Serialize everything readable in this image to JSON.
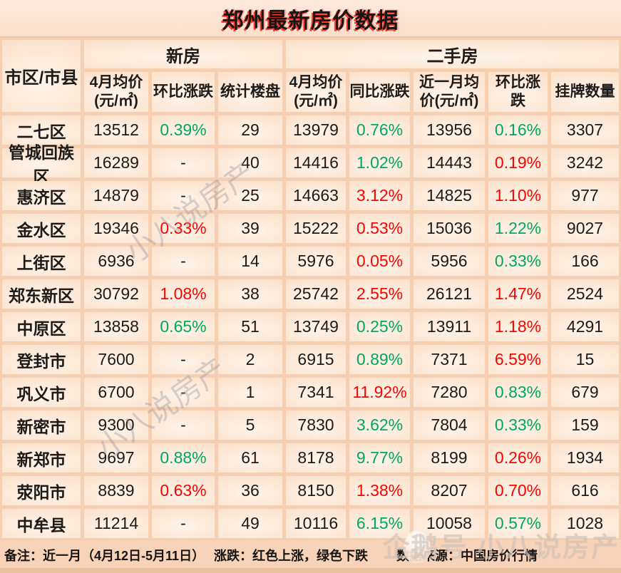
{
  "title": "郑州最新房价数据",
  "chart_data": {
    "type": "table",
    "corner_header": "市区/市县",
    "column_groups": [
      {
        "label": "新房",
        "colspan": 3
      },
      {
        "label": "二手房",
        "colspan": 5
      }
    ],
    "columns": [
      "4月均价\n(元/㎡)",
      "环比涨跌",
      "统计楼盘",
      "4月均价\n(元/㎡)",
      "同比涨跌",
      "近一月均\n价(元/㎡)",
      "环比涨跌",
      "挂牌数量"
    ],
    "rows": [
      {
        "district": "二七区",
        "values": [
          "13512",
          "0.39%",
          "29",
          "13979",
          "0.76%",
          "13956",
          "0.16%",
          "3307"
        ],
        "colors": [
          "black",
          "green",
          "black",
          "black",
          "green",
          "black",
          "green",
          "black"
        ]
      },
      {
        "district": "管城回族区",
        "values": [
          "16289",
          "-",
          "40",
          "14416",
          "1.02%",
          "14443",
          "0.19%",
          "3242"
        ],
        "colors": [
          "black",
          "black",
          "black",
          "black",
          "green",
          "black",
          "red",
          "black"
        ]
      },
      {
        "district": "惠济区",
        "values": [
          "14879",
          "-",
          "25",
          "14663",
          "3.12%",
          "14825",
          "1.10%",
          "977"
        ],
        "colors": [
          "black",
          "black",
          "black",
          "black",
          "red",
          "black",
          "red",
          "black"
        ]
      },
      {
        "district": "金水区",
        "values": [
          "19346",
          "0.33%",
          "39",
          "15222",
          "0.53%",
          "15036",
          "1.22%",
          "9027"
        ],
        "colors": [
          "black",
          "red",
          "black",
          "black",
          "red",
          "black",
          "green",
          "black"
        ]
      },
      {
        "district": "上街区",
        "values": [
          "6936",
          "-",
          "14",
          "5976",
          "0.05%",
          "5956",
          "0.33%",
          "166"
        ],
        "colors": [
          "black",
          "black",
          "black",
          "black",
          "red",
          "black",
          "green",
          "black"
        ]
      },
      {
        "district": "郑东新区",
        "values": [
          "30792",
          "1.08%",
          "38",
          "25742",
          "2.55%",
          "26121",
          "1.47%",
          "2524"
        ],
        "colors": [
          "black",
          "red",
          "black",
          "black",
          "red",
          "black",
          "red",
          "black"
        ]
      },
      {
        "district": "中原区",
        "values": [
          "13858",
          "0.65%",
          "51",
          "13749",
          "0.25%",
          "13911",
          "1.18%",
          "4291"
        ],
        "colors": [
          "black",
          "green",
          "black",
          "black",
          "green",
          "black",
          "red",
          "black"
        ]
      },
      {
        "district": "登封市",
        "values": [
          "7600",
          "-",
          "2",
          "6915",
          "0.89%",
          "7371",
          "6.59%",
          "15"
        ],
        "colors": [
          "black",
          "black",
          "black",
          "black",
          "green",
          "black",
          "red",
          "black"
        ]
      },
      {
        "district": "巩义市",
        "values": [
          "6700",
          "-",
          "1",
          "7341",
          "11.92%",
          "7280",
          "0.83%",
          "679"
        ],
        "colors": [
          "black",
          "black",
          "black",
          "black",
          "red",
          "black",
          "green",
          "black"
        ]
      },
      {
        "district": "新密市",
        "values": [
          "9300",
          "-",
          "5",
          "7830",
          "3.62%",
          "7804",
          "0.33%",
          "159"
        ],
        "colors": [
          "black",
          "black",
          "black",
          "black",
          "green",
          "black",
          "green",
          "black"
        ]
      },
      {
        "district": "新郑市",
        "values": [
          "9697",
          "0.88%",
          "61",
          "8178",
          "9.77%",
          "8199",
          "0.26%",
          "1934"
        ],
        "colors": [
          "black",
          "green",
          "black",
          "black",
          "green",
          "black",
          "red",
          "black"
        ]
      },
      {
        "district": "荥阳市",
        "values": [
          "8839",
          "0.63%",
          "36",
          "8150",
          "1.38%",
          "8207",
          "0.70%",
          "616"
        ],
        "colors": [
          "black",
          "red",
          "black",
          "black",
          "red",
          "black",
          "red",
          "black"
        ]
      },
      {
        "district": "中牟县",
        "values": [
          "11214",
          "-",
          "49",
          "10116",
          "6.15%",
          "10058",
          "0.57%",
          "1028"
        ],
        "colors": [
          "black",
          "black",
          "black",
          "black",
          "green",
          "black",
          "green",
          "black"
        ]
      }
    ]
  },
  "footer": {
    "note": "备注：近一月（4月12日-5月11日）",
    "legend": "涨跌：红色上涨，绿色下跌",
    "source": "数据来源：中国房价行情"
  },
  "watermarks": {
    "diagonal": "小八说房产",
    "brand": "企鹅号 小八说房产"
  },
  "colors": {
    "up_red": "#fb0400",
    "down_green": "#00a85c",
    "background_peach": "#f6ceb0",
    "cell_center": "#fff4ea"
  }
}
